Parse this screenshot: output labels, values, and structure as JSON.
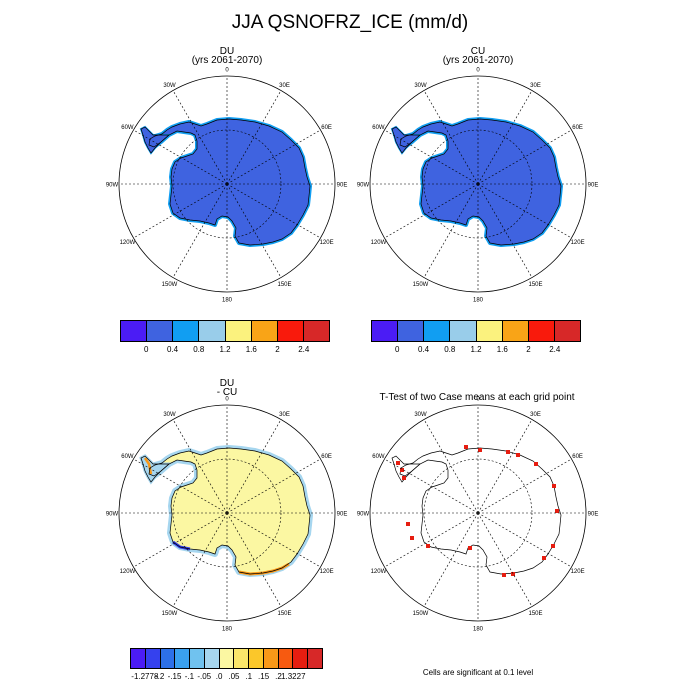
{
  "title": "JJA QSNOFRZ_ICE (mm/d)",
  "panels": {
    "du": {
      "title": "DU",
      "subtitle": "(yrs 2061-2070)"
    },
    "cu": {
      "title": "CU",
      "subtitle": "(yrs 2061-2070)"
    },
    "diff": {
      "title_line1": "DU",
      "title_line2": "- CU"
    },
    "ttest": {
      "title": "T-Test of two Case means at each grid point",
      "note": "Cells are significant at 0.1 level"
    }
  },
  "lon_labels": [
    "0",
    "30E",
    "60E",
    "90E",
    "120E",
    "150E",
    "180",
    "150W",
    "120W",
    "90W",
    "60W",
    "30W"
  ],
  "colorbar_top": {
    "colors": [
      "#4b1cf5",
      "#3f63e0",
      "#119ef2",
      "#99cdea",
      "#fbf27e",
      "#f9a417",
      "#f91a0c",
      "#d72828"
    ],
    "labels": [
      "0",
      "0.4",
      "0.8",
      "1.2",
      "1.6",
      "2",
      "2.4"
    ]
  },
  "colorbar_diff": {
    "colors": [
      "#4b1cf5",
      "#3541ee",
      "#2d70e8",
      "#3aa0ef",
      "#70c2ef",
      "#a6d6ef",
      "#fbf7a2",
      "#fbe66a",
      "#fbc72a",
      "#f99818",
      "#f75a10",
      "#e61d10",
      "#d72828"
    ],
    "labels": [
      "-1.2778",
      "-.2",
      "-.15",
      "-.1",
      "-.05",
      ".0",
      ".05",
      ".1",
      ".15",
      ".2",
      "1.3227"
    ]
  },
  "colors": {
    "ice_fill": "#3f63e0",
    "ice_edge": "#119ef2",
    "diff_fill": "#fbf7a2",
    "diff_edge_light": "#a6d6ef",
    "diff_pos": "#f99818",
    "diff_neg": "#3541ee",
    "significant": "#e61d10"
  }
}
